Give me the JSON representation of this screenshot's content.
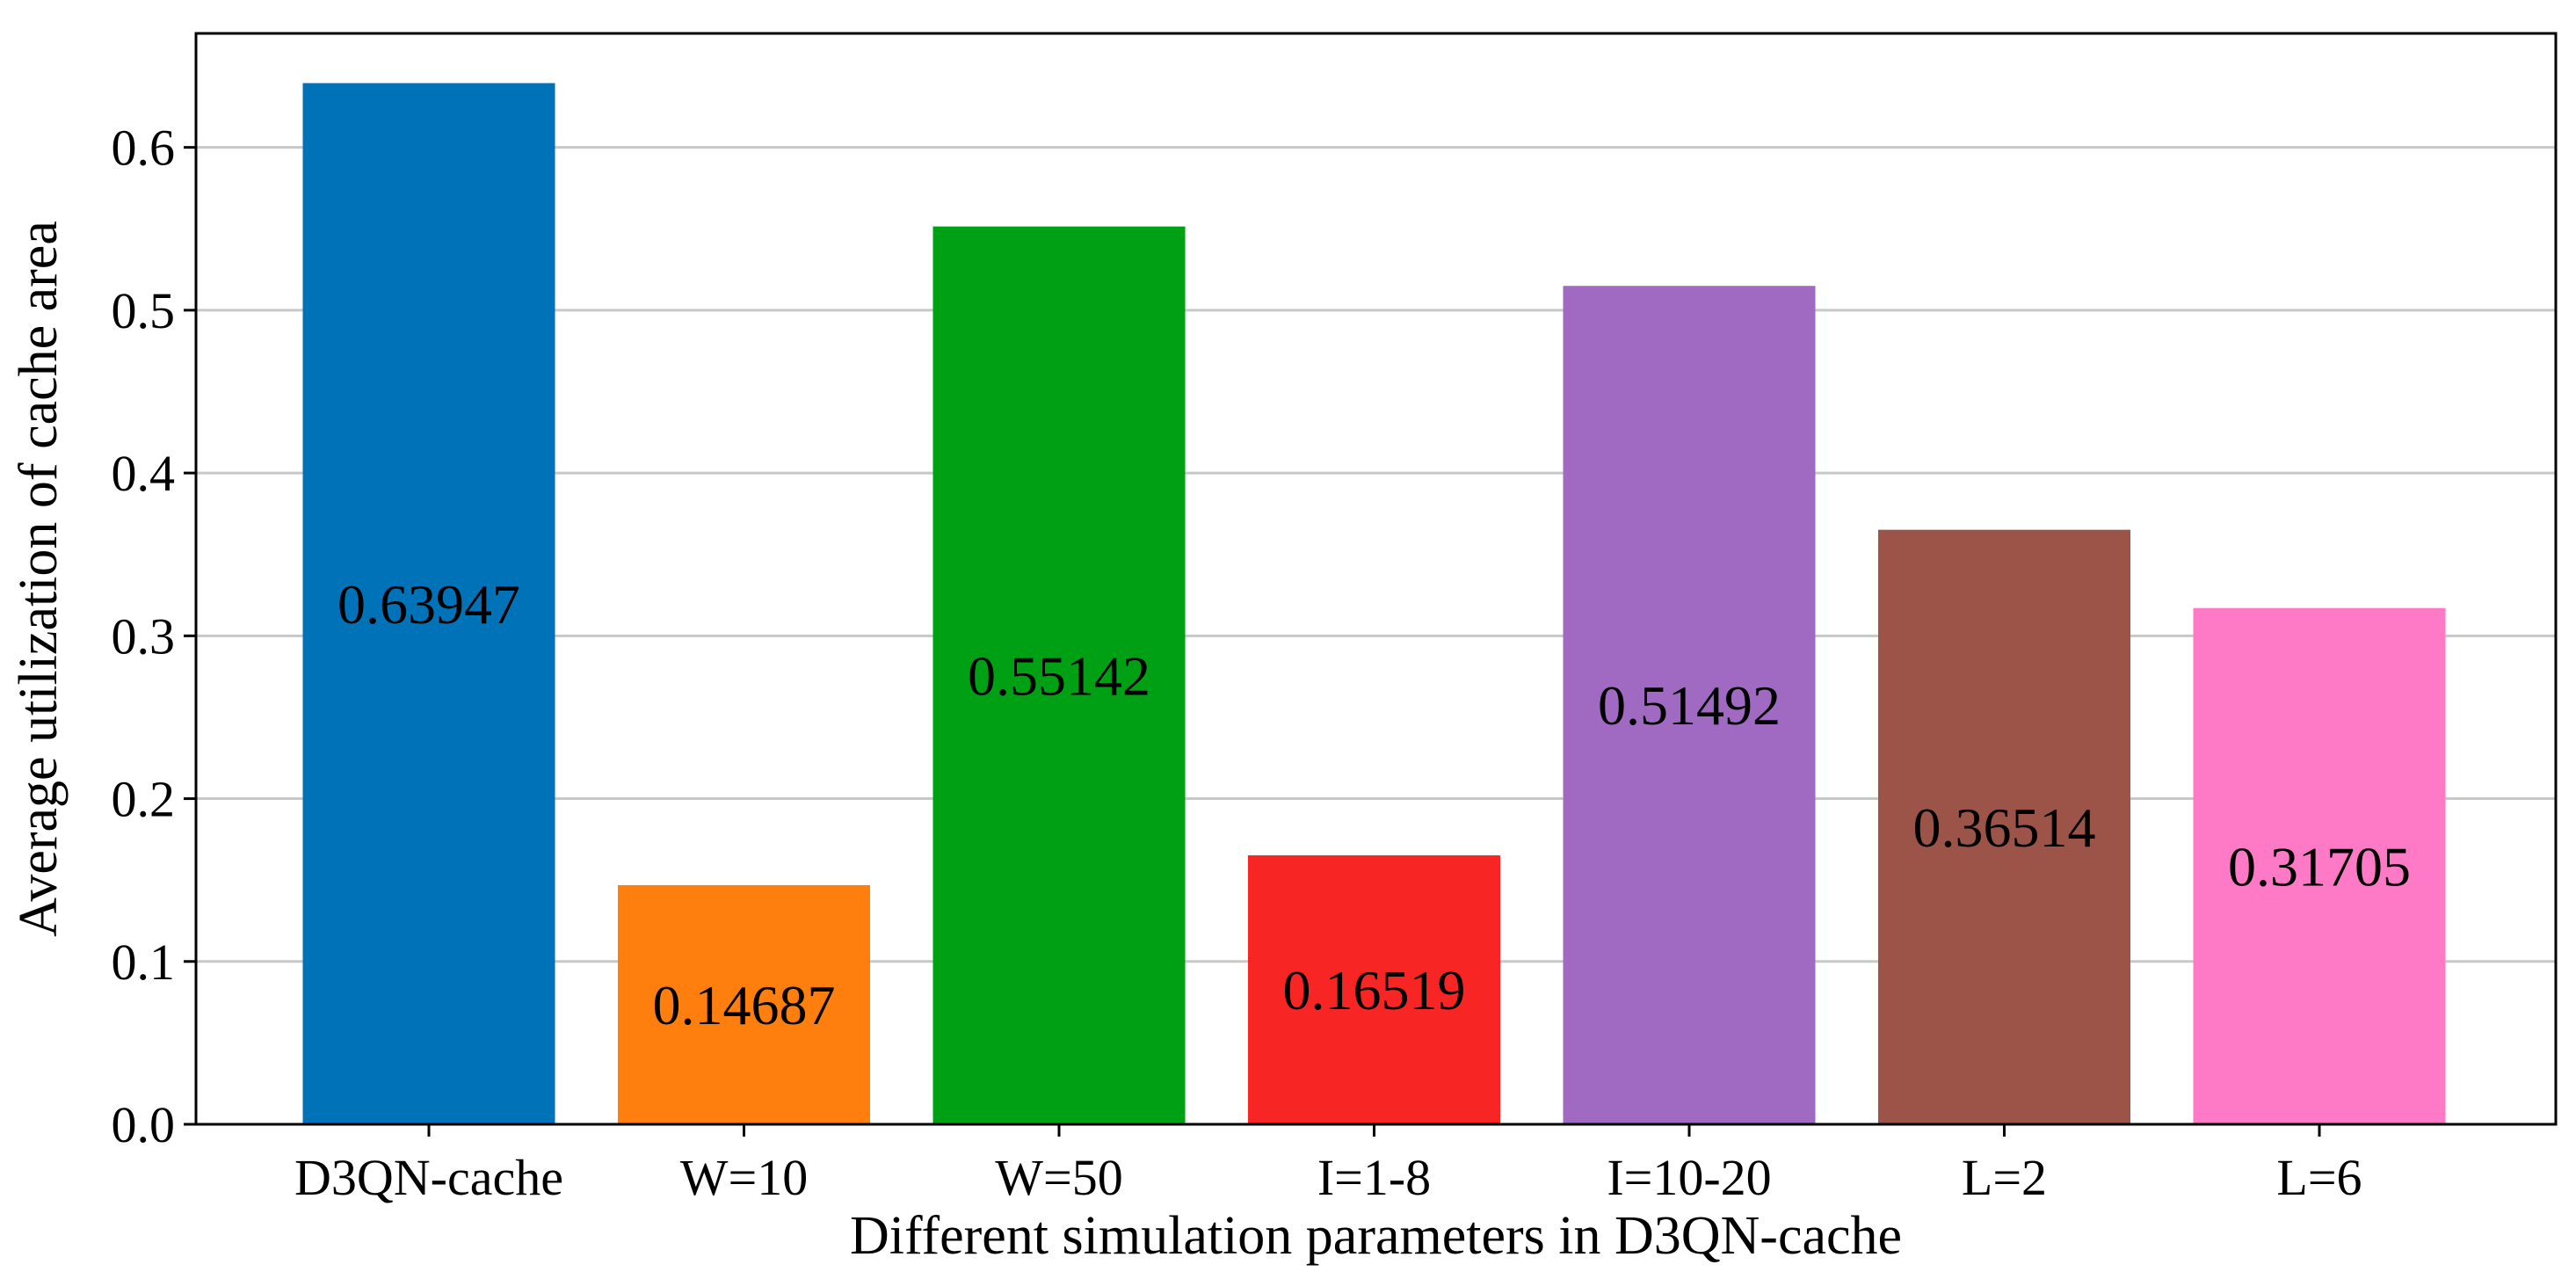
{
  "chart_data": {
    "type": "bar",
    "title": "",
    "xlabel": "Different simulation parameters in D3QN-cache",
    "ylabel": "Average utilization of cache area",
    "categories": [
      "D3QN-cache",
      "W=10",
      "W=50",
      "I=1-8",
      "I=10-20",
      "L=2",
      "L=6"
    ],
    "values": [
      0.63947,
      0.14687,
      0.55142,
      0.16519,
      0.51492,
      0.36514,
      0.31705
    ],
    "value_labels": [
      "0.63947",
      "0.14687",
      "0.55142",
      "0.16519",
      "0.51492",
      "0.36514",
      "0.31705"
    ],
    "colors": [
      "#0072b8",
      "#ff7f0e",
      "#00a014",
      "#f82525",
      "#a06ac2",
      "#9b5447",
      "#ff7ac6"
    ],
    "ylim": [
      0,
      0.67
    ],
    "yticks": [
      0.0,
      0.1,
      0.2,
      0.3,
      0.4,
      0.5,
      0.6
    ],
    "ytick_labels": [
      "0.0",
      "0.1",
      "0.2",
      "0.3",
      "0.4",
      "0.5",
      "0.6"
    ],
    "grid": "y",
    "legend": "none"
  }
}
